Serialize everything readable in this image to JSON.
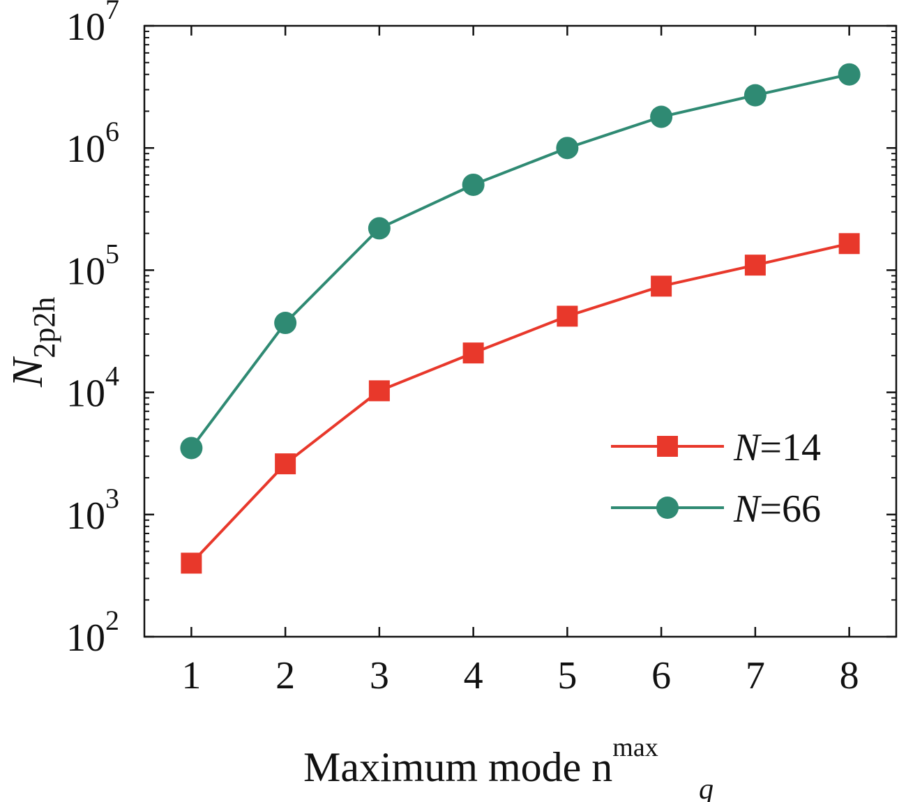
{
  "chart_data": {
    "type": "line",
    "x": [
      1,
      2,
      3,
      4,
      5,
      6,
      7,
      8
    ],
    "xticks": [
      "1",
      "2",
      "3",
      "4",
      "5",
      "6",
      "7",
      "8"
    ],
    "xlim": [
      0.5,
      8.5
    ],
    "yscale": "log",
    "ylim": [
      100,
      10000000
    ],
    "yticks": [
      {
        "base": "10",
        "exp": "2"
      },
      {
        "base": "10",
        "exp": "3"
      },
      {
        "base": "10",
        "exp": "4"
      },
      {
        "base": "10",
        "exp": "5"
      },
      {
        "base": "10",
        "exp": "6"
      },
      {
        "base": "10",
        "exp": "7"
      }
    ],
    "xlabel": {
      "main": "Maximum mode n",
      "sup": "max",
      "sub": "q"
    },
    "ylabel": {
      "main": "N",
      "sub": "2p2h"
    },
    "legend_position": "right-middle",
    "grid": false,
    "series": [
      {
        "name": "N=14",
        "legend": {
          "italic": "N",
          "rest": "=14"
        },
        "marker": "square",
        "color": "#e8382b",
        "values": [
          400,
          2600,
          10300,
          21000,
          42000,
          74000,
          110000,
          165000
        ]
      },
      {
        "name": "N=66",
        "legend": {
          "italic": "N",
          "rest": "=66"
        },
        "marker": "circle",
        "color": "#2f8a73",
        "values": [
          3500,
          37000,
          220000,
          500000,
          1000000,
          1800000,
          2700000,
          4000000
        ]
      }
    ]
  }
}
